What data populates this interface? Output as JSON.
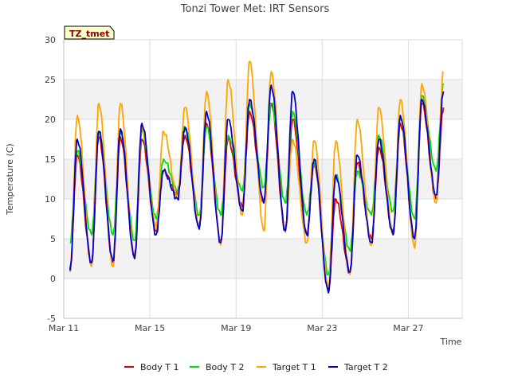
{
  "chart_data": {
    "type": "line",
    "title": "Tonzi Tower Met: IRT Sensors",
    "tag": "TZ_tmet",
    "xlabel": "Time",
    "ylabel": "Temperature (C)",
    "xlim": [
      11,
      29.5
    ],
    "ylim": [
      -5,
      30
    ],
    "yticks": [
      -5,
      0,
      5,
      10,
      15,
      20,
      25,
      30
    ],
    "xticks": [
      {
        "value": 11,
        "label": "Mar 11"
      },
      {
        "value": 15,
        "label": "Mar 15"
      },
      {
        "value": 19,
        "label": "Mar 19"
      },
      {
        "value": 23,
        "label": "Mar 23"
      },
      {
        "value": 27,
        "label": "Mar 27"
      }
    ],
    "legend": "bottom",
    "days": [
      11,
      12,
      13,
      14,
      15,
      16,
      17,
      18,
      19,
      20,
      21,
      22,
      23,
      24,
      25,
      26,
      27,
      28,
      29
    ],
    "series": [
      {
        "name": "Body T 1",
        "color": "#dd0000",
        "max": [
          15.5,
          17.8,
          17.8,
          17.5,
          13.5,
          18.0,
          19.5,
          17.5,
          21.0,
          22.0,
          20.0,
          14.5,
          10.0,
          14.5,
          16.5,
          19.5,
          22.0,
          21.5,
          null
        ],
        "min": [
          1.2,
          2.0,
          2.0,
          2.8,
          6.0,
          10.5,
          6.5,
          4.8,
          9.0,
          9.5,
          6.0,
          5.5,
          -1.5,
          0.8,
          5.0,
          5.8,
          5.2,
          10.0,
          null
        ]
      },
      {
        "name": "Body T 2",
        "color": "#00dd00",
        "max": [
          16.0,
          18.5,
          18.5,
          18.5,
          15.0,
          19.0,
          19.0,
          18.0,
          22.0,
          22.0,
          21.0,
          14.5,
          13.0,
          13.5,
          18.0,
          20.0,
          23.0,
          24.5,
          null
        ],
        "min": [
          4.5,
          5.5,
          5.5,
          4.8,
          7.5,
          11.0,
          8.0,
          8.0,
          11.0,
          11.5,
          9.5,
          8.0,
          0.5,
          3.5,
          8.0,
          8.5,
          7.5,
          13.5,
          null
        ]
      },
      {
        "name": "Target T 1",
        "color": "#ffa500",
        "max": [
          20.5,
          22.0,
          22.0,
          19.0,
          18.5,
          21.5,
          23.5,
          25.0,
          27.3,
          26.0,
          17.5,
          17.3,
          17.3,
          20.0,
          21.5,
          22.5,
          24.5,
          26.0,
          null
        ],
        "min": [
          0.8,
          1.5,
          1.5,
          2.5,
          6.5,
          10.5,
          6.5,
          4.2,
          8.0,
          6.0,
          5.8,
          4.5,
          -1.0,
          0.5,
          4.2,
          5.5,
          3.8,
          9.5,
          null
        ]
      },
      {
        "name": "Target T 2",
        "color": "#0000cc",
        "max": [
          17.5,
          18.5,
          18.8,
          19.5,
          13.5,
          19.0,
          21.0,
          20.0,
          22.5,
          24.3,
          23.5,
          15.0,
          13.0,
          15.5,
          17.5,
          20.5,
          22.5,
          23.5,
          null
        ],
        "min": [
          1.0,
          2.0,
          2.2,
          2.5,
          5.5,
          10.0,
          6.2,
          4.5,
          8.5,
          9.5,
          6.0,
          5.5,
          -1.8,
          0.8,
          4.5,
          5.5,
          5.0,
          10.5,
          null
        ]
      }
    ]
  }
}
